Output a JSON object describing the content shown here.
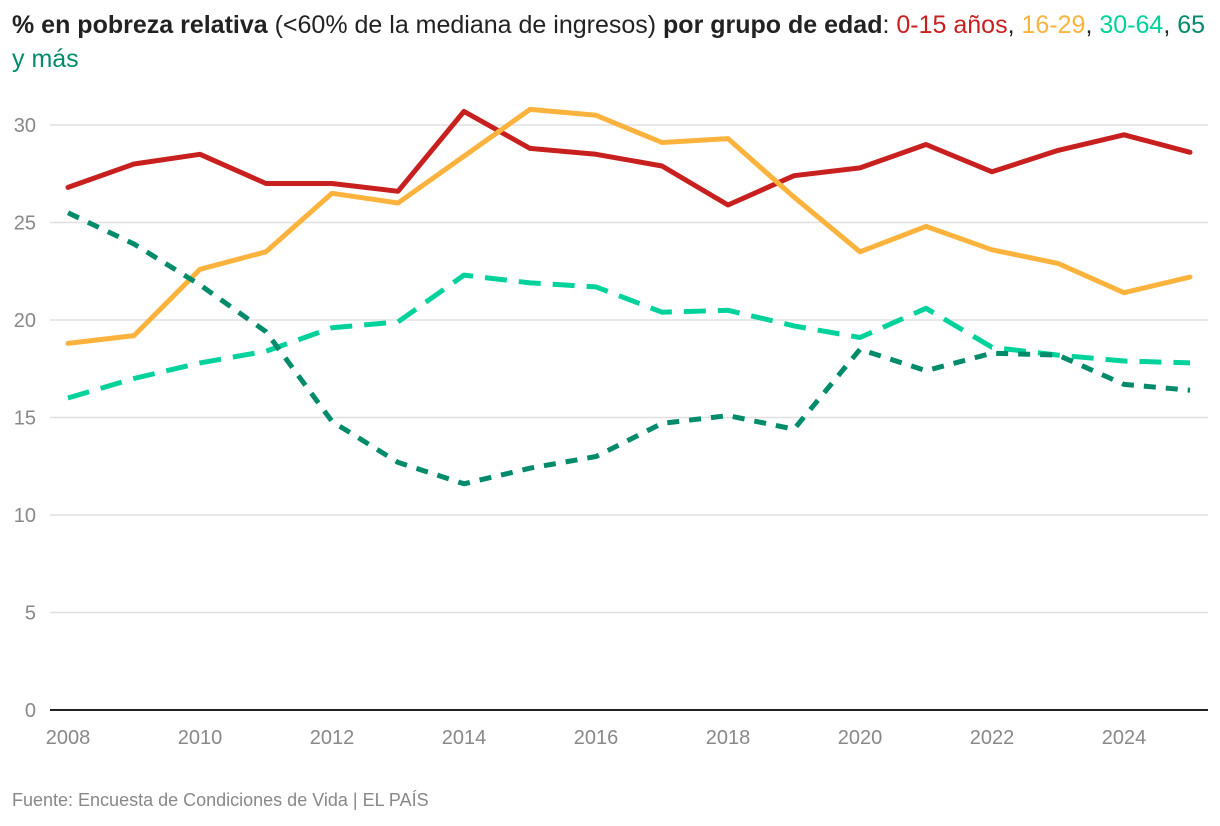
{
  "title": {
    "part1_bold": "% en pobreza relativa",
    "part2": " (<60% de la mediana de ingresos) ",
    "part3_bold": "por grupo de edad",
    "part4": ": ",
    "sep1": ", ",
    "sep2": ", ",
    "sep3": ", "
  },
  "source": "Fuente: Encuesta de Condiciones de Vida | EL PAÍS",
  "chart_data": {
    "type": "line",
    "title": "% en pobreza relativa (<60% de la mediana de ingresos) por grupo de edad",
    "xlabel": "",
    "ylabel": "",
    "ylim": [
      0,
      30
    ],
    "yticks": [
      0,
      5,
      10,
      15,
      20,
      25,
      30
    ],
    "xticks": [
      2008,
      2010,
      2012,
      2014,
      2016,
      2018,
      2020,
      2022,
      2024
    ],
    "x": [
      2008,
      2009,
      2010,
      2011,
      2012,
      2013,
      2014,
      2015,
      2016,
      2017,
      2018,
      2019,
      2020,
      2021,
      2022,
      2023,
      2024,
      2025
    ],
    "series": [
      {
        "name": "0-15 años",
        "color": "#c8201e",
        "dash": "solid",
        "values": [
          26.8,
          28.0,
          28.5,
          27.0,
          27.0,
          26.6,
          30.7,
          28.8,
          28.5,
          27.9,
          25.9,
          27.4,
          27.8,
          29.0,
          27.6,
          28.7,
          29.5,
          28.6
        ]
      },
      {
        "name": "16-29",
        "color": "#fbb33d",
        "dash": "solid",
        "values": [
          18.8,
          19.2,
          22.6,
          23.5,
          26.5,
          26.0,
          28.4,
          30.8,
          30.5,
          29.1,
          29.3,
          26.3,
          23.5,
          24.8,
          23.6,
          22.9,
          21.4,
          22.2
        ]
      },
      {
        "name": "30-64",
        "color": "#00d29c",
        "dash": "dashed",
        "values": [
          16.0,
          17.0,
          17.8,
          18.4,
          19.6,
          19.9,
          22.3,
          21.9,
          21.7,
          20.4,
          20.5,
          19.7,
          19.1,
          20.6,
          18.6,
          18.2,
          17.9,
          17.8
        ]
      },
      {
        "name": "65 y más",
        "color": "#008b6b",
        "dash": "dotted",
        "values": [
          25.5,
          23.9,
          21.8,
          19.4,
          14.8,
          12.7,
          11.6,
          12.4,
          13.0,
          14.7,
          15.1,
          14.4,
          18.5,
          17.4,
          18.3,
          18.2,
          16.7,
          16.4
        ]
      }
    ]
  }
}
